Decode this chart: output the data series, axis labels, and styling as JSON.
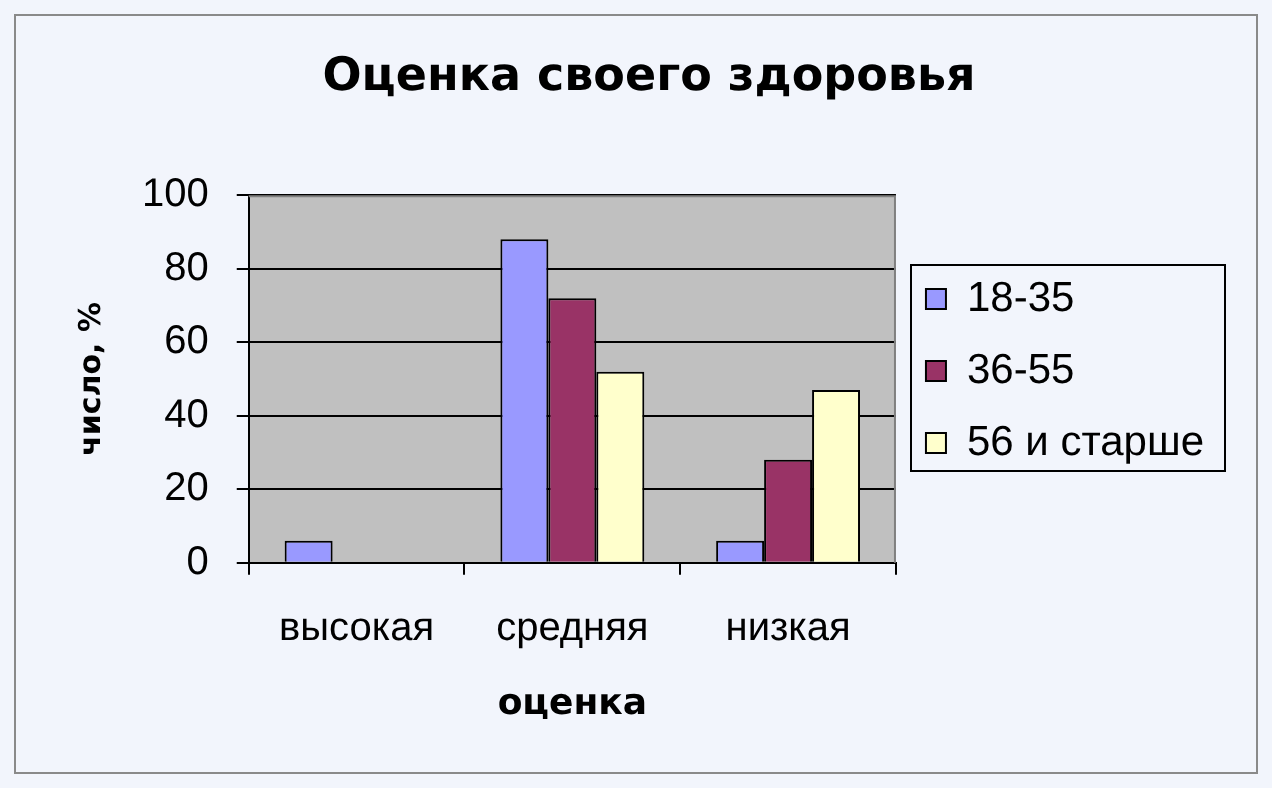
{
  "chart_data": {
    "type": "bar",
    "title": "Оценка своего здоровья",
    "xlabel": "оценка",
    "ylabel": "число, %",
    "categories": [
      "высокая",
      "средняя",
      "низкая"
    ],
    "series": [
      {
        "name": "18-35",
        "color": "#9999ff",
        "values": [
          6,
          88,
          6
        ]
      },
      {
        "name": "36-55",
        "color": "#993366",
        "values": [
          0,
          72,
          28
        ]
      },
      {
        "name": "56 и старше",
        "color": "#ffffcc",
        "values": [
          0,
          52,
          47
        ]
      }
    ],
    "ylim": [
      0,
      100
    ],
    "yticks": [
      0,
      20,
      40,
      60,
      80,
      100
    ],
    "grid": "y",
    "legend": "right"
  }
}
